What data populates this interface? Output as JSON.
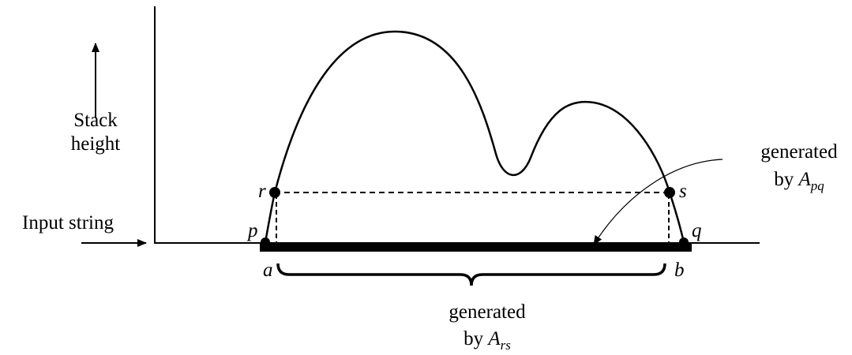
{
  "axis_labels": {
    "stack": "Stack",
    "height": "height",
    "input": "Input string"
  },
  "points": {
    "p": "p",
    "r": "r",
    "s": "s",
    "q": "q",
    "a": "a",
    "b": "b"
  },
  "annotations": [
    {
      "line1": "generated",
      "by": "by",
      "var": "A",
      "sub": "pq"
    },
    {
      "line1": "generated",
      "by": "by",
      "var": "A",
      "sub": "rs"
    }
  ]
}
